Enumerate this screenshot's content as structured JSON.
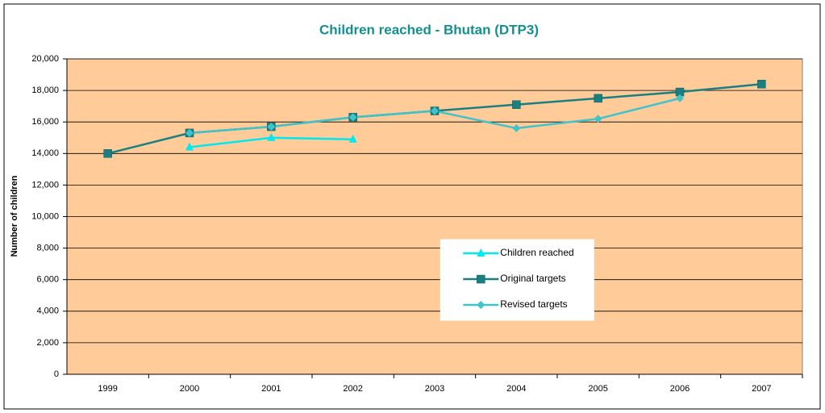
{
  "chart_data": {
    "type": "line",
    "title": "Children reached - Bhutan (DTP3)",
    "y_label": "Number of children",
    "categories": [
      "1999",
      "2000",
      "2001",
      "2002",
      "2003",
      "2004",
      "2005",
      "2006",
      "2007"
    ],
    "series": [
      {
        "name": "Children reached",
        "color": "#00e8f0",
        "marker": "triangle",
        "values": [
          null,
          14400,
          15000,
          14900,
          null,
          null,
          null,
          null,
          null
        ]
      },
      {
        "name": "Original targets",
        "color": "#1a7f80",
        "marker": "square",
        "values": [
          14000,
          15300,
          15700,
          16300,
          16700,
          17100,
          17500,
          17900,
          18400
        ]
      },
      {
        "name": "Revised targets",
        "color": "#40c4cc",
        "marker": "diamond",
        "values": [
          null,
          15300,
          15700,
          16300,
          16700,
          15600,
          16200,
          17500,
          null
        ]
      }
    ],
    "ylim": [
      0,
      20000
    ],
    "yticks": [
      0,
      {
        "value": 2000,
        "label": "2,000"
      },
      {
        "value": 4000,
        "label": "4,000"
      },
      {
        "value": 6000,
        "label": "6,000"
      },
      {
        "value": 8000,
        "label": "8,000"
      },
      {
        "value": 10000,
        "label": "10,000"
      },
      {
        "value": 12000,
        "label": "12,000"
      },
      {
        "value": 14000,
        "label": "14,000"
      },
      {
        "value": 16000,
        "label": "16,000"
      },
      {
        "value": 18000,
        "label": "18,000"
      },
      {
        "value": 20000,
        "label": "20,000"
      }
    ],
    "grid": true,
    "plot_background": "#ffcc99",
    "legend": "bottom-right"
  }
}
